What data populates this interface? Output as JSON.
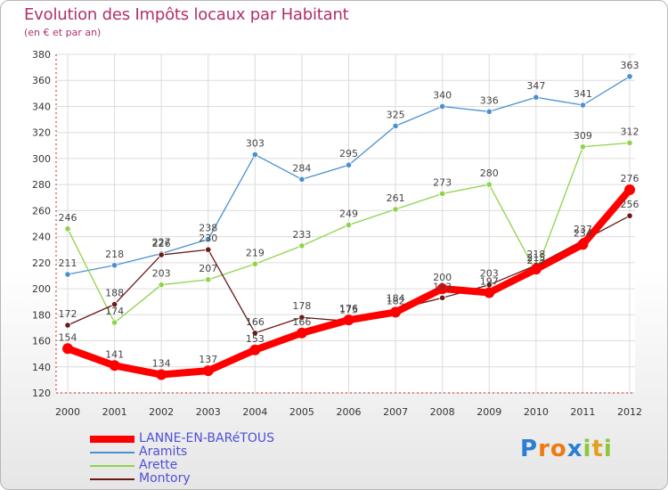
{
  "title": "Evolution des Impôts locaux par Habitant",
  "subtitle": "(en € et par an)",
  "brand": {
    "letters": [
      "P",
      "r",
      "o",
      "x",
      "i",
      "t",
      "i"
    ],
    "colors": [
      "#2a7fd4",
      "#f07a10",
      "#f07a10",
      "#2a7fd4",
      "#8cc63f",
      "#e0a020",
      "#8cc63f"
    ]
  },
  "chart_data": {
    "type": "line",
    "title": "Evolution des Impôts locaux par Habitant",
    "subtitle": "(en € et par an)",
    "x": [
      2000,
      2001,
      2002,
      2003,
      2004,
      2005,
      2006,
      2007,
      2008,
      2009,
      2010,
      2011,
      2012
    ],
    "ylim": [
      120,
      380
    ],
    "yticks": [
      120,
      140,
      160,
      180,
      200,
      220,
      240,
      260,
      280,
      300,
      320,
      340,
      360,
      380
    ],
    "grid": true,
    "legend": "bottom-left",
    "series": [
      {
        "name": "LANNE-EN-BARéTOUS",
        "color": "#ff0000",
        "values": [
          154,
          141,
          134,
          137,
          153,
          166,
          176,
          182,
          200,
          197,
          215,
          234,
          276
        ]
      },
      {
        "name": "Aramits",
        "color": "#4a90d0",
        "values": [
          211,
          218,
          227,
          238,
          303,
          284,
          295,
          325,
          340,
          336,
          347,
          341,
          363
        ]
      },
      {
        "name": "Arette",
        "color": "#8ed34a",
        "values": [
          246,
          174,
          203,
          207,
          219,
          233,
          249,
          261,
          273,
          280,
          213,
          309,
          312
        ]
      },
      {
        "name": "Montory",
        "color": "#6b1a1a",
        "values": [
          172,
          188,
          226,
          230,
          166,
          178,
          175,
          184,
          193,
          203,
          218,
          237,
          256
        ]
      }
    ]
  }
}
